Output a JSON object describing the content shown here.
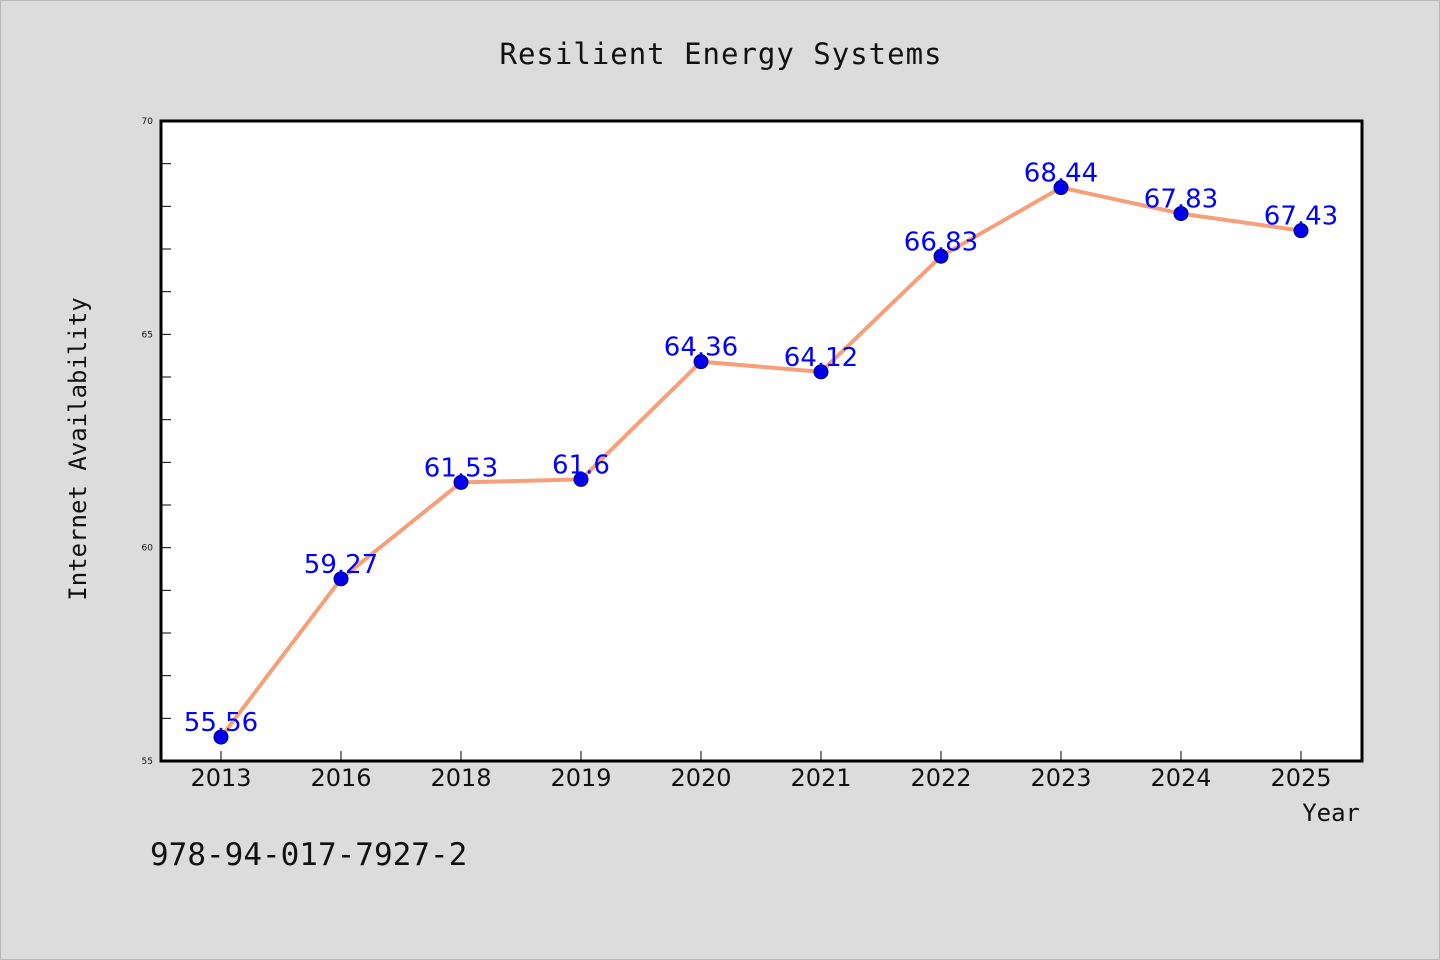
{
  "chart_data": {
    "type": "line",
    "title": "Resilient Energy Systems",
    "xlabel": "Year",
    "ylabel": "Internet Availability",
    "categories": [
      "2013",
      "2016",
      "2018",
      "2019",
      "2020",
      "2021",
      "2022",
      "2023",
      "2024",
      "2025"
    ],
    "series": [
      {
        "values": [
          55.56,
          59.27,
          61.53,
          61.6,
          64.36,
          64.12,
          66.83,
          68.44,
          67.83,
          67.43
        ]
      }
    ],
    "data_labels": [
      "55.56",
      "59.27",
      "61.53",
      "61.6",
      "64.36",
      "64.12",
      "66.83",
      "68.44",
      "67.83",
      "67.43"
    ],
    "ylim": [
      55,
      70
    ],
    "yticks": [
      55,
      60,
      65,
      70
    ],
    "grid": false,
    "legend": "none"
  },
  "footnote": "978-94-017-7927-2",
  "colors": {
    "background": "#dcdcdc",
    "plot_background": "#ffffff",
    "line": "#f5a07a",
    "marker": "#0000ee",
    "data_label": "#0000ff"
  }
}
